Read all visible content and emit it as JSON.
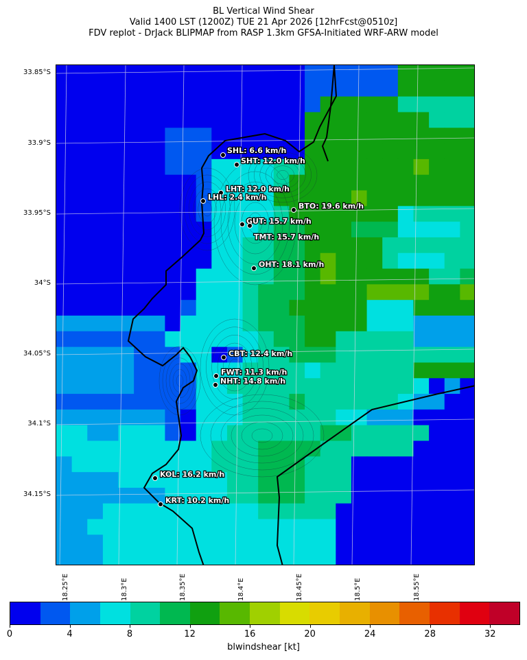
{
  "title": {
    "line1": "BL Vertical Wind Shear",
    "line2": "Valid 1400 LST (1200Z) TUE 21 Apr 2026 [12hrFcst@0510z]",
    "line3": "FDV replot - DrJack BLIPMAP from RASP 1.3km GFSA-Initiated WRF-ARW model"
  },
  "map": {
    "lat_labels": [
      "33.85°S",
      "33.9°S",
      "33.95°S",
      "34°S",
      "34.05°S",
      "34.1°S",
      "34.15°S"
    ],
    "lon_labels": [
      "18.25°E",
      "18.3°E",
      "18.35°E",
      "18.4°E",
      "18.45°E",
      "18.5°E",
      "18.55°E"
    ],
    "stations": [
      {
        "code": "SHL",
        "label": "SHL: 6.6 km/h"
      },
      {
        "code": "SHT",
        "label": "SHT: 12.0 km/h"
      },
      {
        "code": "LHT",
        "label": "LHT: 12.0 km/h"
      },
      {
        "code": "LHL",
        "label": "LHL: 2.4 km/h"
      },
      {
        "code": "BTO",
        "label": "BTO: 19.6 km/h"
      },
      {
        "code": "GUT",
        "label": "GUT: 15.7 km/h"
      },
      {
        "code": "TMT",
        "label": "TMT: 15.7 km/h"
      },
      {
        "code": "OHT",
        "label": "OHT: 18.1 km/h"
      },
      {
        "code": "CBT",
        "label": "CBT: 12.4 km/h"
      },
      {
        "code": "FWT",
        "label": "FWT: 11.3 km/h"
      },
      {
        "code": "NHT",
        "label": "NHT: 14.8 km/h"
      },
      {
        "code": "KOL",
        "label": "KOL: 16.2 km/h"
      },
      {
        "code": "KRT",
        "label": "KRT: 10.2 km/h"
      }
    ]
  },
  "colorbar": {
    "label": "blwindshear [kt]",
    "ticks": [
      "0",
      "4",
      "8",
      "12",
      "16",
      "20",
      "24",
      "28",
      "32"
    ],
    "colors": [
      "#0000ee",
      "#0058f0",
      "#00a0ea",
      "#00e0e0",
      "#00d2a0",
      "#00b850",
      "#10a010",
      "#58b800",
      "#a0d000",
      "#d8dc00",
      "#e8cc00",
      "#e8b000",
      "#e89000",
      "#e86000",
      "#e83000",
      "#e00010",
      "#c00028"
    ]
  }
}
